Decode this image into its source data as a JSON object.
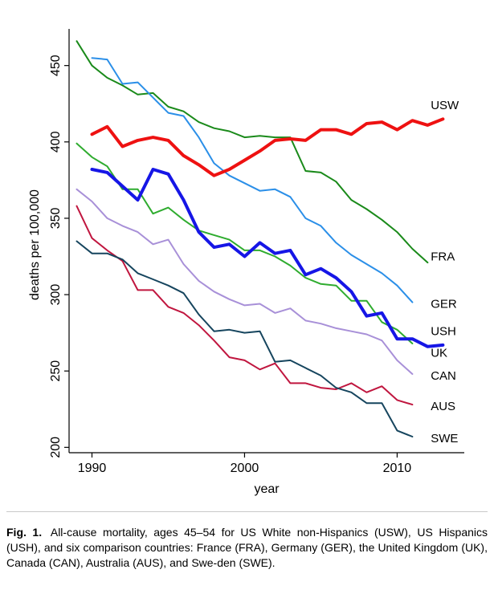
{
  "chart_data": {
    "type": "line",
    "title": "",
    "xlabel": "year",
    "ylabel": "deaths per 100,000",
    "xlim": [
      1988.5,
      2014.4
    ],
    "ylim": [
      196.5,
      474
    ],
    "xticks": [
      1990,
      2000,
      2010
    ],
    "yticks": [
      200,
      250,
      300,
      350,
      400,
      450
    ],
    "grid": false,
    "series": [
      {
        "name": "USW",
        "color": "#ee1111",
        "width": 4,
        "x": [
          1989,
          1990,
          1991,
          1992,
          1993,
          1994,
          1995,
          1996,
          1997,
          1998,
          1999,
          2000,
          2001,
          2002,
          2003,
          2004,
          2005,
          2006,
          2007,
          2008,
          2009,
          2010,
          2011,
          2012,
          2013
        ],
        "y": [
          null,
          405,
          410,
          397,
          401,
          403,
          401,
          391,
          385,
          378,
          382,
          388,
          394,
          401,
          402,
          401,
          408,
          408,
          405,
          412,
          413,
          408,
          414,
          411,
          415
        ]
      },
      {
        "name": "FRA",
        "color": "#1a8a1a",
        "width": 2,
        "x": [
          1989,
          1990,
          1991,
          1992,
          1993,
          1994,
          1995,
          1996,
          1997,
          1998,
          1999,
          2000,
          2001,
          2002,
          2003,
          2004,
          2005,
          2006,
          2007,
          2008,
          2009,
          2010,
          2011,
          2012
        ],
        "y": [
          466,
          450,
          442,
          437,
          431,
          432,
          423,
          420,
          413,
          409,
          407,
          403,
          404,
          403,
          403,
          381,
          380,
          374,
          362,
          356,
          349,
          341,
          330,
          321
        ]
      },
      {
        "name": "GER",
        "color": "#2b8fe8",
        "width": 2,
        "x": [
          1990,
          1991,
          1992,
          1993,
          1994,
          1995,
          1996,
          1997,
          1998,
          1999,
          2000,
          2001,
          2002,
          2003,
          2004,
          2005,
          2006,
          2007,
          2008,
          2009,
          2010,
          2011
        ],
        "y": [
          455,
          454,
          438,
          439,
          429,
          419,
          417,
          403,
          386,
          378,
          373,
          368,
          369,
          364,
          350,
          345,
          334,
          326,
          320,
          314,
          306,
          295
        ]
      },
      {
        "name": "UK",
        "color": "#1616e6",
        "width": 4,
        "x": [
          1989,
          1990,
          1991,
          1992,
          1993,
          1994,
          1995,
          1996,
          1997,
          1998,
          1999,
          2000,
          2001,
          2002,
          2003,
          2004,
          2005,
          2006,
          2007,
          2008,
          2009,
          2010,
          2011,
          2012,
          2013
        ],
        "y": [
          null,
          382,
          380,
          371,
          362,
          382,
          379,
          362,
          341,
          331,
          333,
          325,
          334,
          327,
          329,
          313,
          317,
          311,
          302,
          286,
          288,
          271,
          271,
          266,
          267
        ]
      },
      {
        "name": "USH",
        "color": "#2fac2f",
        "width": 2,
        "x": [
          1989,
          1990,
          1991,
          1992,
          1993,
          1994,
          1995,
          1996,
          1997,
          1998,
          1999,
          2000,
          2001,
          2002,
          2003,
          2004,
          2005,
          2006,
          2007,
          2008,
          2009,
          2010,
          2011
        ],
        "y": [
          399,
          390,
          384,
          369,
          369,
          353,
          357,
          349,
          342,
          339,
          336,
          329,
          329,
          325,
          319,
          311,
          307,
          306,
          296,
          296,
          282,
          277,
          268
        ]
      },
      {
        "name": "CAN",
        "color": "#a890d8",
        "width": 2,
        "x": [
          1989,
          1990,
          1991,
          1992,
          1993,
          1994,
          1995,
          1996,
          1997,
          1998,
          1999,
          2000,
          2001,
          2002,
          2003,
          2004,
          2005,
          2006,
          2007,
          2008,
          2009,
          2010,
          2011
        ],
        "y": [
          369,
          361,
          350,
          345,
          341,
          333,
          336,
          320,
          309,
          302,
          297,
          293,
          294,
          288,
          291,
          283,
          281,
          278,
          276,
          274,
          270,
          257,
          248
        ]
      },
      {
        "name": "AUS",
        "color": "#c0163f",
        "width": 2,
        "x": [
          1989,
          1990,
          1991,
          1992,
          1993,
          1994,
          1995,
          1996,
          1997,
          1998,
          1999,
          2000,
          2001,
          2002,
          2003,
          2004,
          2005,
          2006,
          2007,
          2008,
          2009,
          2010,
          2011
        ],
        "y": [
          358,
          337,
          329,
          322,
          303,
          303,
          292,
          288,
          280,
          270,
          259,
          257,
          251,
          255,
          242,
          242,
          239,
          238,
          242,
          236,
          240,
          231,
          228
        ]
      },
      {
        "name": "SWE",
        "color": "#16455e",
        "width": 2,
        "x": [
          1989,
          1990,
          1991,
          1992,
          1993,
          1994,
          1995,
          1996,
          1997,
          1998,
          1999,
          2000,
          2001,
          2002,
          2003,
          2004,
          2005,
          2006,
          2007,
          2008,
          2009,
          2010,
          2011
        ],
        "y": [
          335,
          327,
          327,
          323,
          314,
          310,
          306,
          301,
          287,
          276,
          277,
          275,
          276,
          256,
          257,
          252,
          247,
          239,
          236,
          229,
          229,
          211,
          207
        ]
      }
    ],
    "labels": [
      {
        "text": "USW",
        "x": 2012.2,
        "y": 424
      },
      {
        "text": "FRA",
        "x": 2012.2,
        "y": 325
      },
      {
        "text": "GER",
        "x": 2012.2,
        "y": 294
      },
      {
        "text": "USH",
        "x": 2012.2,
        "y": 276
      },
      {
        "text": "UK",
        "x": 2012.2,
        "y": 262
      },
      {
        "text": "CAN",
        "x": 2012.2,
        "y": 247
      },
      {
        "text": "AUS",
        "x": 2012.2,
        "y": 227
      },
      {
        "text": "SWE",
        "x": 2012.2,
        "y": 206
      }
    ]
  },
  "caption": {
    "label": "Fig. 1.",
    "text": "All-cause mortality, ages 45–54 for US White non-Hispanics (USW), US Hispanics (USH), and six comparison countries: France (FRA), Germany (GER), the United Kingdom (UK), Canada (CAN), Australia (AUS), and Swe-den (SWE)."
  }
}
